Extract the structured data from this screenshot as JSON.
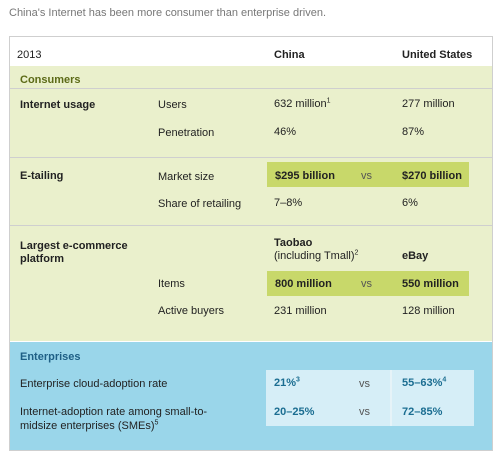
{
  "caption": "China's Internet has been more consumer than enterprise driven.",
  "header": {
    "year": "2013",
    "col_china": "China",
    "col_us": "United States"
  },
  "consumers": {
    "title": "Consumers",
    "internet_usage": {
      "label": "Internet usage",
      "users": {
        "label": "Users",
        "china": "632 million",
        "china_note": "1",
        "us": "277 million"
      },
      "penetration": {
        "label": "Penetration",
        "china": "46%",
        "us": "87%"
      }
    },
    "etailing": {
      "label": "E-tailing",
      "market_size": {
        "label": "Market size",
        "china": "$295 billion",
        "vs": "vs",
        "us": "$270 billion"
      },
      "share": {
        "label": "Share of retailing",
        "china": "7–8%",
        "us": "6%"
      }
    },
    "ecommerce": {
      "label_line1": "Largest e-commerce",
      "label_line2": "platform",
      "china_platform_line1": "Taobao",
      "china_platform_line2": "(including Tmall)",
      "china_platform_note": "2",
      "us_platform": "eBay",
      "items": {
        "label": "Items",
        "china": "800 million",
        "vs": "vs",
        "us": "550 million"
      },
      "buyers": {
        "label": "Active buyers",
        "china": "231 million",
        "us": "128 million"
      }
    }
  },
  "enterprises": {
    "title": "Enterprises",
    "cloud": {
      "label": "Enterprise cloud-adoption rate",
      "china": "21%",
      "china_note": "3",
      "vs": "vs",
      "us": "55–63%",
      "us_note": "4"
    },
    "sme": {
      "label_line1": "Internet-adoption rate among small-to-",
      "label_line2": "midsize enterprises (SMEs)",
      "label_note": "5",
      "china": "20–25%",
      "vs": "vs",
      "us": "72–85%"
    }
  },
  "colors": {
    "consumer_panel": "#eaf0cc",
    "consumer_highlight": "#c8d86a",
    "enterprise_panel": "#9ad6ea",
    "enterprise_highlight": "#d6eef7"
  }
}
